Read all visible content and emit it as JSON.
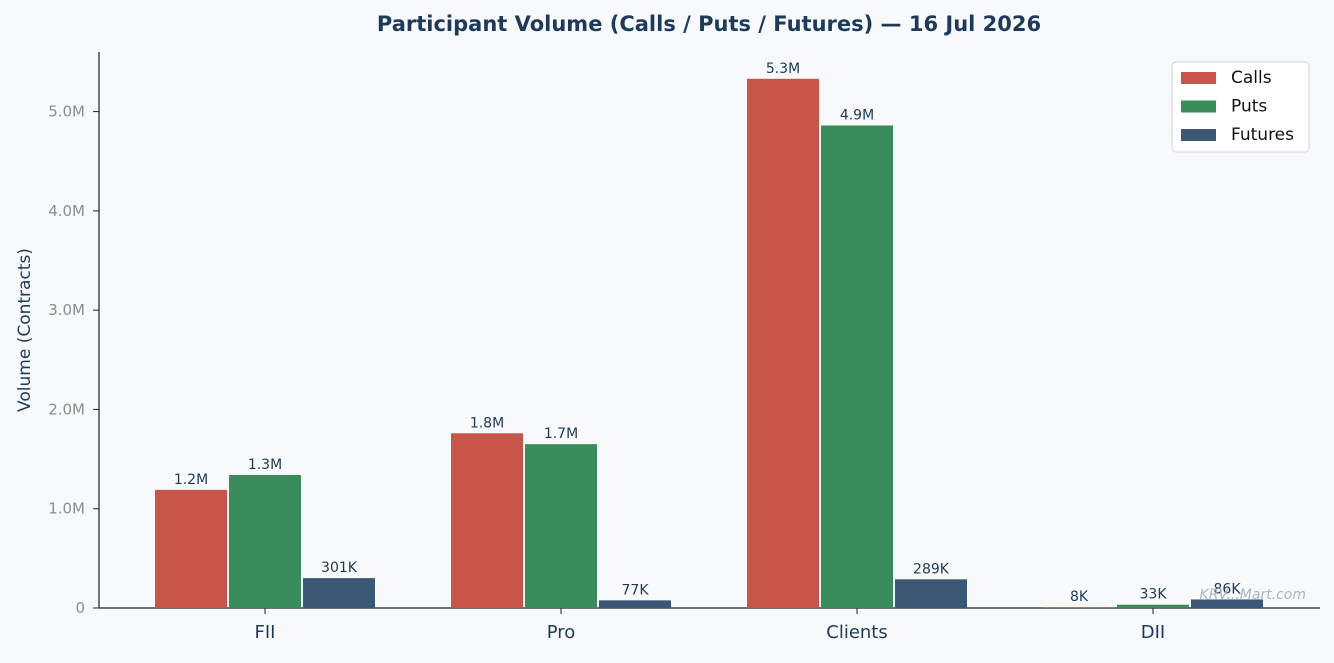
{
  "chart_data": {
    "type": "bar",
    "title": "Participant Volume (Calls / Puts / Futures) — 16 Jul 2026",
    "xlabel": "",
    "ylabel": "Volume (Contracts)",
    "categories": [
      "FII",
      "Pro",
      "Clients",
      "DII"
    ],
    "series": [
      {
        "name": "Calls",
        "color": "#c8554a",
        "values": [
          1190000,
          1760000,
          5330000,
          8000
        ],
        "labels": [
          "1.2M",
          "1.8M",
          "5.3M",
          "8K"
        ]
      },
      {
        "name": "Puts",
        "color": "#3a8c5a",
        "values": [
          1340000,
          1650000,
          4860000,
          33000
        ],
        "labels": [
          "1.3M",
          "1.7M",
          "4.9M",
          "33K"
        ]
      },
      {
        "name": "Futures",
        "color": "#3c5675",
        "values": [
          301000,
          77000,
          289000,
          86000
        ],
        "labels": [
          "301K",
          "77K",
          "289K",
          "86K"
        ]
      }
    ],
    "ylim": [
      0,
      5600000
    ],
    "yticks": [
      0,
      1000000,
      2000000,
      3000000,
      4000000,
      5000000
    ],
    "ytick_labels": [
      "0",
      "1.0M",
      "2.0M",
      "3.0M",
      "4.0M",
      "5.0M"
    ],
    "grid": false,
    "legend": "top-right",
    "watermark": "KRV...Mart.com"
  }
}
